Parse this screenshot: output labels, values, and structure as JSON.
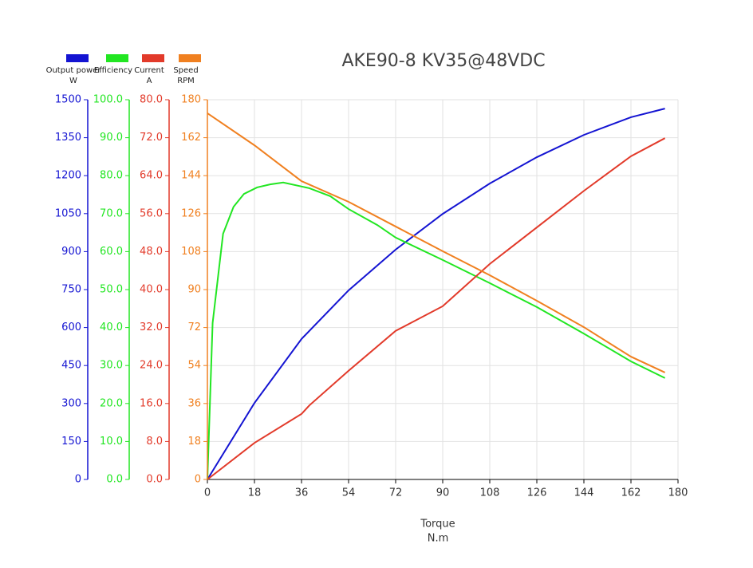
{
  "chart_data": {
    "type": "line",
    "title": "AKE90-8 KV35@48VDC",
    "x_label": "Torque",
    "x_unit": "N.m",
    "xlim": [
      0,
      180
    ],
    "xticks": [
      0,
      18,
      36,
      54,
      72,
      90,
      108,
      126,
      144,
      162,
      180
    ],
    "grid": true,
    "series": [
      {
        "name": "Output power",
        "unit": "W",
        "color": "#1414d2",
        "x": [
          0,
          18,
          36,
          54,
          72,
          90,
          108,
          126,
          144,
          162,
          175
        ],
        "values": [
          0,
          302,
          555,
          747,
          908,
          1049,
          1169,
          1273,
          1361,
          1431,
          1465
        ],
        "ylim": [
          0,
          1500
        ],
        "yticks": [
          0,
          150,
          300,
          450,
          600,
          750,
          900,
          1050,
          1200,
          1350,
          1500
        ]
      },
      {
        "name": "Efficiency",
        "color": "#22e622",
        "x": [
          0,
          2,
          6,
          10,
          14,
          19,
          24,
          29,
          39,
          47,
          54,
          65,
          72,
          90,
          108,
          126,
          144,
          162,
          175
        ],
        "values": [
          0,
          41.2,
          64.7,
          71.8,
          75.2,
          76.9,
          77.7,
          78.2,
          76.7,
          74.6,
          71.2,
          67.0,
          63.7,
          57.8,
          51.7,
          45.4,
          38.4,
          31.1,
          26.7
        ],
        "ylim": [
          0,
          100
        ],
        "yticks": [
          {
            "value": 0,
            "label": "0.0"
          },
          {
            "value": 10,
            "label": "10.0"
          },
          {
            "value": 20,
            "label": "20.0"
          },
          {
            "value": 30,
            "label": "30.0"
          },
          {
            "value": 40,
            "label": "40.0"
          },
          {
            "value": 50,
            "label": "50.0"
          },
          {
            "value": 60,
            "label": "60.0"
          },
          {
            "value": 70,
            "label": "70.0"
          },
          {
            "value": 80,
            "label": "80.0"
          },
          {
            "value": 90,
            "label": "90.0"
          },
          {
            "value": 100,
            "label": "100.0"
          }
        ]
      },
      {
        "name": "Current",
        "unit": "A",
        "color": "#e23a2a",
        "x": [
          0,
          18,
          36,
          39,
          54,
          72,
          90,
          108,
          126,
          144,
          162,
          175
        ],
        "values": [
          0,
          7.7,
          13.8,
          15.6,
          22.9,
          31.3,
          36.5,
          45.4,
          53.1,
          60.8,
          68.1,
          71.9
        ],
        "ylim": [
          0,
          80
        ],
        "yticks": [
          {
            "value": 0,
            "label": "0.0"
          },
          {
            "value": 8,
            "label": "8.0"
          },
          {
            "value": 16,
            "label": "16.0"
          },
          {
            "value": 24,
            "label": "24.0"
          },
          {
            "value": 32,
            "label": "32.0"
          },
          {
            "value": 40,
            "label": "40.0"
          },
          {
            "value": 48,
            "label": "48.0"
          },
          {
            "value": 56,
            "label": "56.0"
          },
          {
            "value": 64,
            "label": "64.0"
          },
          {
            "value": 72,
            "label": "72.0"
          },
          {
            "value": 80,
            "label": "80.0"
          }
        ]
      },
      {
        "name": "Speed",
        "unit": "RPM",
        "color": "#f08020",
        "x": [
          0,
          18,
          36,
          54,
          72,
          90,
          108,
          126,
          144,
          162,
          175
        ],
        "values": [
          173.6,
          158.4,
          141.4,
          131.6,
          119.9,
          108.2,
          96.8,
          84.7,
          72.2,
          58.2,
          50.7
        ],
        "ylim": [
          0,
          180
        ],
        "yticks": [
          0,
          18,
          36,
          54,
          72,
          90,
          108,
          126,
          144,
          162,
          180
        ]
      }
    ]
  }
}
